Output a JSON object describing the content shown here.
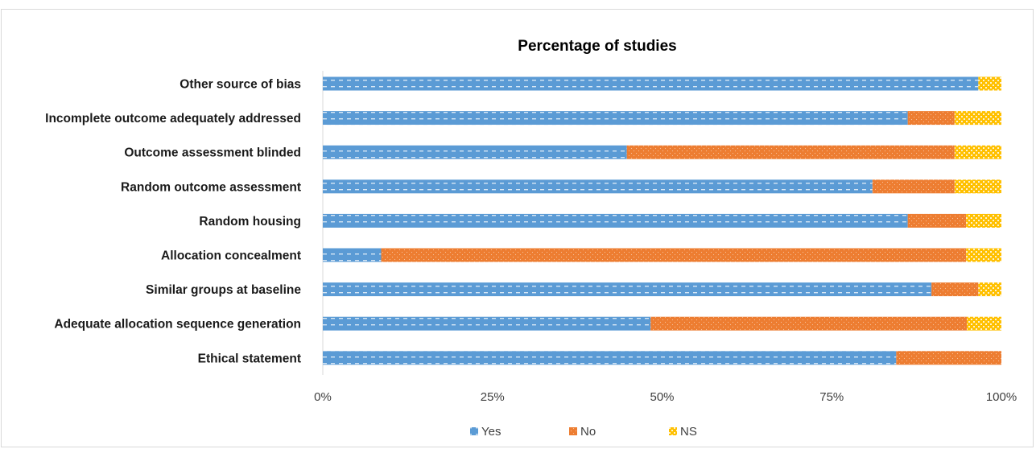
{
  "chart_data": {
    "type": "bar",
    "orientation": "horizontal",
    "stacked": true,
    "title": "Percentage of studies",
    "categories": [
      "Other source of bias",
      "Incomplete outcome adequately addressed",
      "Outcome assessment blinded",
      "Random outcome assessment",
      "Random housing",
      "Allocation concealment",
      "Similar groups at baseline",
      "Adequate allocation sequence generation",
      "Ethical statement"
    ],
    "series": [
      {
        "name": "Yes",
        "color": "#5b9bd5",
        "values": [
          96.6,
          86.2,
          44.8,
          81.0,
          86.2,
          8.6,
          89.7,
          48.3,
          84.5
        ]
      },
      {
        "name": "No",
        "color": "#ed7d31",
        "values": [
          0.0,
          6.9,
          48.3,
          12.1,
          8.6,
          86.2,
          6.9,
          46.6,
          15.5
        ]
      },
      {
        "name": "NS",
        "color": "#ffc000",
        "values": [
          3.4,
          6.9,
          6.9,
          6.9,
          5.2,
          5.2,
          3.4,
          5.1,
          0.0
        ]
      }
    ],
    "xlim": [
      0,
      100
    ],
    "xticks": [
      "0%",
      "25%",
      "50%",
      "75%",
      "100%"
    ],
    "legend_position": "bottom",
    "grid": false
  }
}
